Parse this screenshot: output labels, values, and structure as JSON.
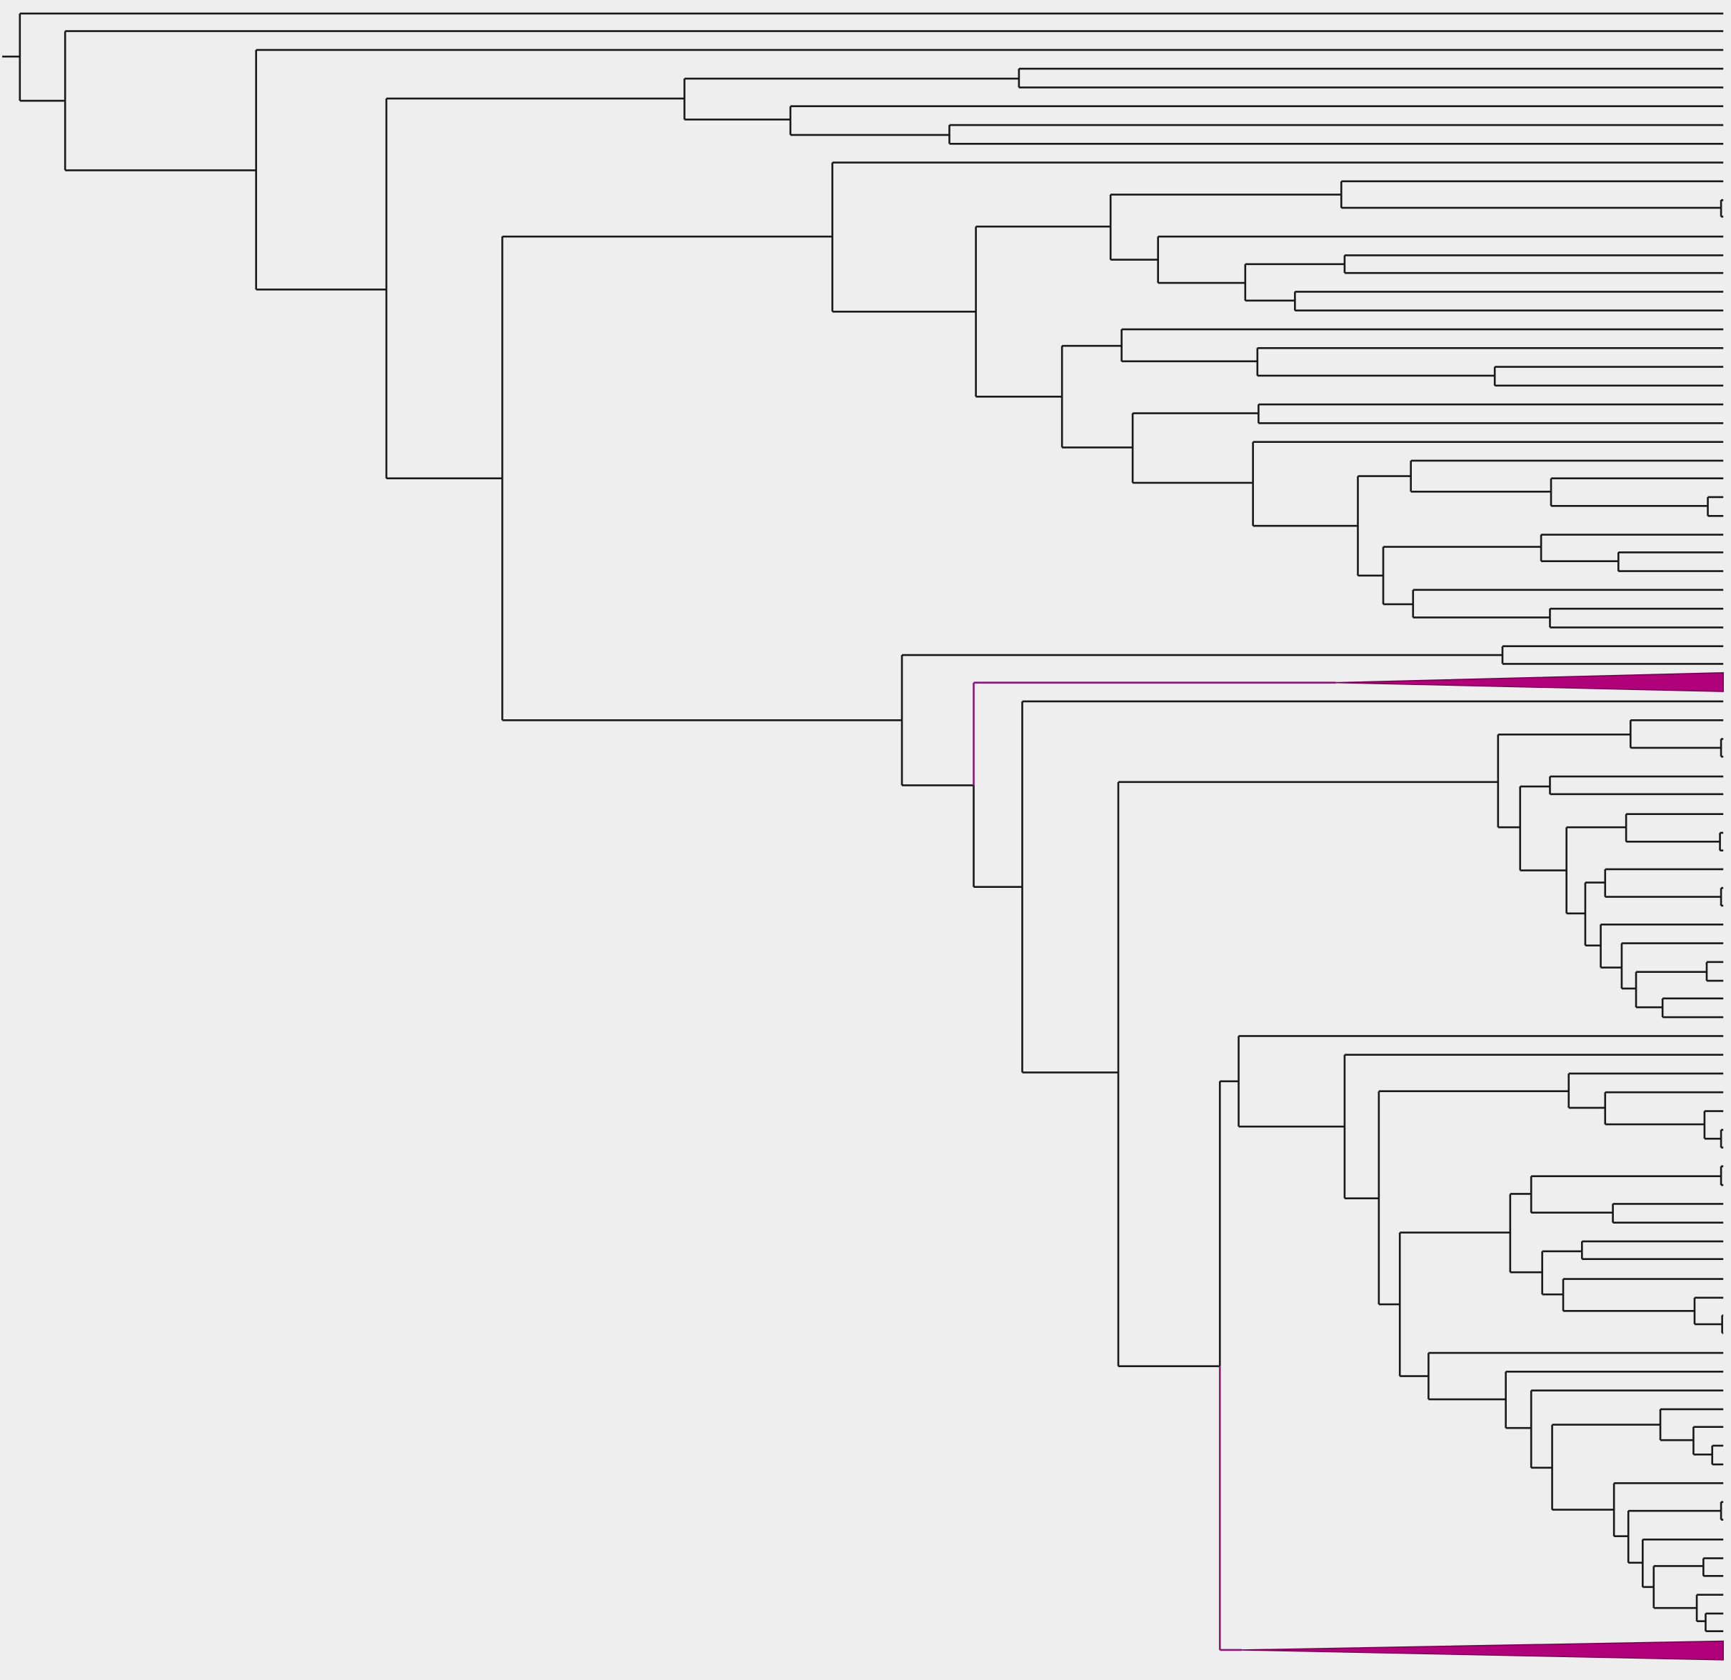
{
  "colors": {
    "background": "#eeeeee",
    "branch": "#1a1a1a",
    "highlight_branch": "#8a1a78",
    "collapsed_clade": "#b0007a"
  },
  "tree": {
    "type": "phylogenetic-tree",
    "orientation": "left-to-right",
    "labels_visible": false,
    "collapsed_clades": 2,
    "highlighted_clades": 2
  }
}
